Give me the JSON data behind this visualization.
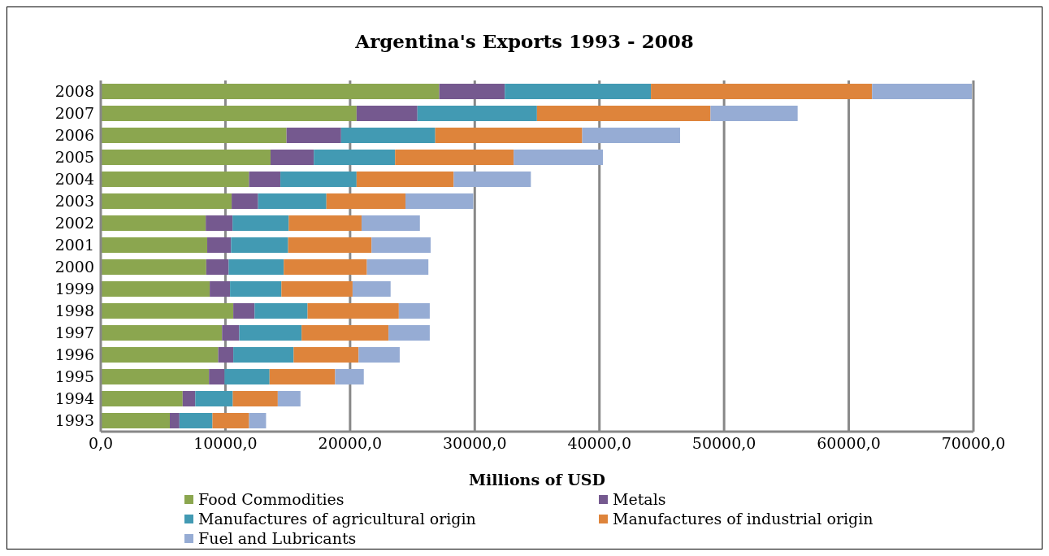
{
  "chart_data": {
    "type": "bar",
    "orientation": "horizontal",
    "stacked": true,
    "title": "Argentina's Exports 1993 - 2008",
    "xlabel": "Millions of USD",
    "categories": [
      "2008",
      "2007",
      "2006",
      "2005",
      "2004",
      "2003",
      "2002",
      "2001",
      "2000",
      "1999",
      "1998",
      "1997",
      "1996",
      "1995",
      "1994",
      "1993"
    ],
    "series": [
      {
        "name": "Food Commodities",
        "color": "#8ba64f",
        "values": [
          27150,
          20520,
          14900,
          13620,
          11890,
          10500,
          8420,
          8540,
          8460,
          8740,
          10630,
          9730,
          9420,
          8680,
          6570,
          5540
        ]
      },
      {
        "name": "Metals",
        "color": "#75598f",
        "values": [
          5260,
          4880,
          4380,
          3470,
          2520,
          2120,
          2150,
          1910,
          1800,
          1630,
          1710,
          1380,
          1210,
          1250,
          1010,
          770
        ]
      },
      {
        "name": "Manufactures of agricultural origin",
        "color": "#429ab3",
        "values": [
          11720,
          9590,
          7550,
          6520,
          6110,
          5480,
          4510,
          4580,
          4420,
          4120,
          4250,
          5000,
          4840,
          3610,
          3010,
          2650
        ]
      },
      {
        "name": "Manufactures of industrial origin",
        "color": "#de843b",
        "values": [
          17740,
          13920,
          11790,
          9510,
          7790,
          6340,
          5840,
          6690,
          6670,
          5710,
          7320,
          6970,
          5210,
          5260,
          3610,
          2940
        ]
      },
      {
        "name": "Fuel and Lubricants",
        "color": "#96acd4",
        "values": [
          8000,
          6990,
          7850,
          7160,
          6190,
          5440,
          4680,
          4740,
          4930,
          3050,
          2480,
          3310,
          3300,
          2300,
          1820,
          1360
        ]
      }
    ],
    "xlim": [
      0,
      70000
    ],
    "xticks": [
      {
        "value": 0,
        "label": "0,0"
      },
      {
        "value": 10000,
        "label": "10000,0"
      },
      {
        "value": 20000,
        "label": "20000,0"
      },
      {
        "value": 30000,
        "label": "30000,0"
      },
      {
        "value": 40000,
        "label": "40000,0"
      },
      {
        "value": 50000,
        "label": "50000,0"
      },
      {
        "value": 60000,
        "label": "60000,0"
      },
      {
        "value": 70000,
        "label": "70000,0"
      }
    ],
    "grid": "x",
    "legend": "bottom"
  }
}
